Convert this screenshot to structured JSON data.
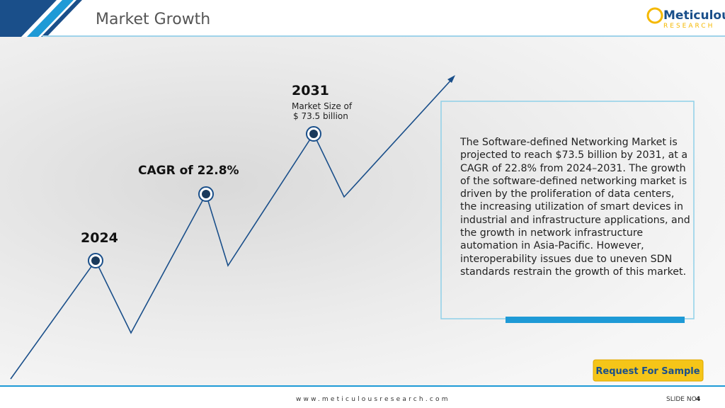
{
  "header": {
    "title": "Market Growth",
    "logo_name": "Meticulous",
    "logo_sub": "RESEARCH"
  },
  "milestones": [
    {
      "year": "2031",
      "caption_line1": "Market Size of",
      "caption_line2": "$ 73.5 billion"
    },
    {
      "label": "CAGR of 22.8%"
    },
    {
      "year": "2024"
    }
  ],
  "description": "The Software-defined Networking Market is projected to reach $73.5 billion by 2031, at a CAGR of 22.8% from 2024–2031. The growth of the software-defined networking market is driven by the proliferation of data centers, the increasing utilization of smart devices in industrial and infrastructure applications, and the growth in network infrastructure automation in Asia-Pacific. However, interoperability issues due to uneven SDN standards restrain the growth of this market.",
  "button": "Request For Sample",
  "footer": {
    "website": "www.meticulousresearch.com",
    "slide_label": "SLIDE NO",
    "slide_number": "4"
  }
}
